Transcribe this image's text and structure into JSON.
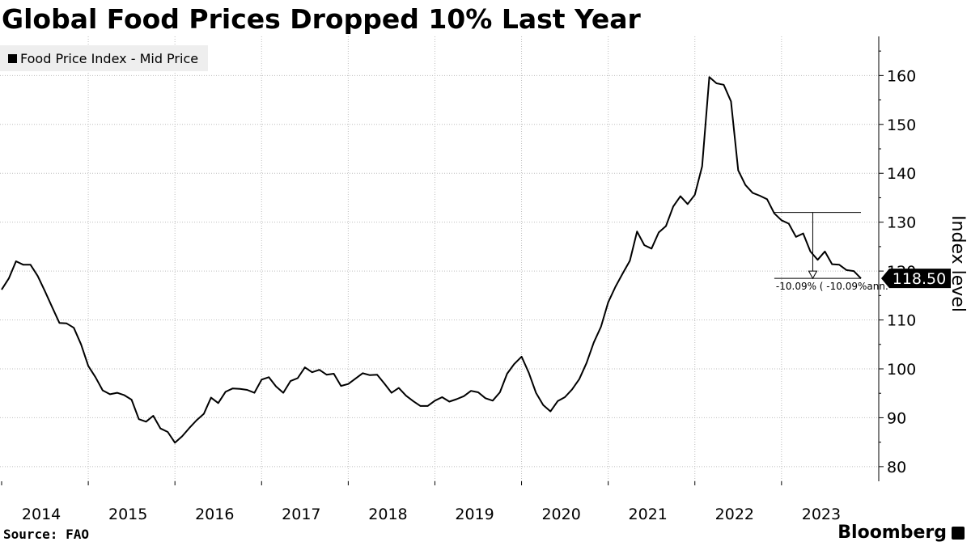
{
  "header": {
    "title": "Global Food Prices Dropped 10% Last Year"
  },
  "footer": {
    "source": "Source: FAO",
    "brand": "Bloomberg"
  },
  "chart_data": {
    "type": "line",
    "legend": "top-left",
    "grid": true,
    "ylabel": "Index level",
    "yticks": [
      80,
      90,
      100,
      110,
      120,
      130,
      140,
      150,
      160
    ],
    "ylim": [
      77,
      168
    ],
    "xticks": [
      "2014",
      "2015",
      "2016",
      "2017",
      "2018",
      "2019",
      "2020",
      "2021",
      "2022",
      "2023"
    ],
    "xlim": [
      "2014-01",
      "2023-12"
    ],
    "last_value_label": "118.50",
    "annotation": {
      "label": "-10.09% ( -10.09%ann.",
      "from": {
        "x": "2022-12",
        "y": 132
      },
      "to": {
        "x": "2023-12",
        "y": 118.5
      }
    },
    "series": [
      {
        "name": "Food Price Index - Mid Price",
        "color": "#000000",
        "x": [
          "2014-01",
          "2014-02",
          "2014-03",
          "2014-04",
          "2014-05",
          "2014-06",
          "2014-07",
          "2014-08",
          "2014-09",
          "2014-10",
          "2014-11",
          "2014-12",
          "2015-01",
          "2015-02",
          "2015-03",
          "2015-04",
          "2015-05",
          "2015-06",
          "2015-07",
          "2015-08",
          "2015-09",
          "2015-10",
          "2015-11",
          "2015-12",
          "2016-01",
          "2016-02",
          "2016-03",
          "2016-04",
          "2016-05",
          "2016-06",
          "2016-07",
          "2016-08",
          "2016-09",
          "2016-10",
          "2016-11",
          "2016-12",
          "2017-01",
          "2017-02",
          "2017-03",
          "2017-04",
          "2017-05",
          "2017-06",
          "2017-07",
          "2017-08",
          "2017-09",
          "2017-10",
          "2017-11",
          "2017-12",
          "2018-01",
          "2018-02",
          "2018-03",
          "2018-04",
          "2018-05",
          "2018-06",
          "2018-07",
          "2018-08",
          "2018-09",
          "2018-10",
          "2018-11",
          "2018-12",
          "2019-01",
          "2019-02",
          "2019-03",
          "2019-04",
          "2019-05",
          "2019-06",
          "2019-07",
          "2019-08",
          "2019-09",
          "2019-10",
          "2019-11",
          "2019-12",
          "2020-01",
          "2020-02",
          "2020-03",
          "2020-04",
          "2020-05",
          "2020-06",
          "2020-07",
          "2020-08",
          "2020-09",
          "2020-10",
          "2020-11",
          "2020-12",
          "2021-01",
          "2021-02",
          "2021-03",
          "2021-04",
          "2021-05",
          "2021-06",
          "2021-07",
          "2021-08",
          "2021-09",
          "2021-10",
          "2021-11",
          "2021-12",
          "2022-01",
          "2022-02",
          "2022-03",
          "2022-04",
          "2022-05",
          "2022-06",
          "2022-07",
          "2022-08",
          "2022-09",
          "2022-10",
          "2022-11",
          "2022-12",
          "2023-01",
          "2023-02",
          "2023-03",
          "2023-04",
          "2023-05",
          "2023-06",
          "2023-07",
          "2023-08",
          "2023-09",
          "2023-10",
          "2023-11",
          "2023-12"
        ],
        "values": [
          116.2,
          118.5,
          122.0,
          121.3,
          121.3,
          119.0,
          115.9,
          112.6,
          109.4,
          109.3,
          108.4,
          105.0,
          100.6,
          98.3,
          95.6,
          94.8,
          95.1,
          94.6,
          93.7,
          89.7,
          89.2,
          90.4,
          87.8,
          87.1,
          84.9,
          86.2,
          87.9,
          89.5,
          90.8,
          94.1,
          93.0,
          95.3,
          96.0,
          95.9,
          95.7,
          95.1,
          97.8,
          98.3,
          96.4,
          95.1,
          97.5,
          98.1,
          100.3,
          99.3,
          99.8,
          98.8,
          99.0,
          96.5,
          96.9,
          98.0,
          99.1,
          98.7,
          98.8,
          97.0,
          95.1,
          96.1,
          94.5,
          93.4,
          92.4,
          92.4,
          93.5,
          94.2,
          93.3,
          93.8,
          94.4,
          95.5,
          95.2,
          94.0,
          93.5,
          95.2,
          99.0,
          101.0,
          102.5,
          99.2,
          95.1,
          92.6,
          91.3,
          93.4,
          94.2,
          95.8,
          97.9,
          101.2,
          105.4,
          108.6,
          113.6,
          116.8,
          119.5,
          122.1,
          128.1,
          125.3,
          124.6,
          127.9,
          129.2,
          133.2,
          135.3,
          133.7,
          135.6,
          141.4,
          159.7,
          158.4,
          158.1,
          154.7,
          140.6,
          137.6,
          136.0,
          135.4,
          134.7,
          131.8,
          130.4,
          129.7,
          127.0,
          127.7,
          124.0,
          122.3,
          124.0,
          121.4,
          121.3,
          120.2,
          120.0,
          118.5
        ]
      }
    ]
  }
}
